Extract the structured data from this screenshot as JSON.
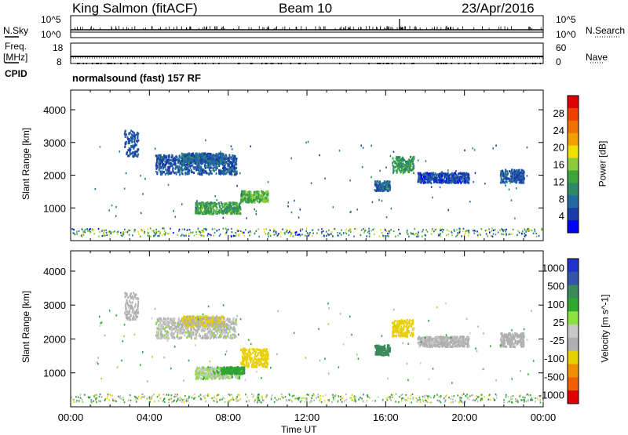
{
  "header": {
    "site": "King Salmon (fitACF)",
    "beam": "Beam 10",
    "date": "23/Apr/2016"
  },
  "summary_panel": {
    "left_labels": {
      "nsky": "N.Sky",
      "freq": "Freq.",
      "freq_unit": "[MHz]",
      "cpid": "CPID"
    },
    "right_labels": {
      "nsearch": "N.Search",
      "nave": "Nave"
    },
    "nsky_ticks": [
      "10^5",
      "10^0"
    ],
    "nsearch_ticks": [
      "10^5",
      "10^0"
    ],
    "freq_ticks": [
      "18",
      "8"
    ],
    "nave_ticks": [
      "60",
      "0"
    ],
    "cpid_text": "normalsound (fast) 157 RF"
  },
  "colors": {
    "power_scale": [
      "#0000ff",
      "#1a3ca8",
      "#236aa0",
      "#2e8a66",
      "#3ca53c",
      "#8ccc3c",
      "#f0e000",
      "#f0a000",
      "#f07000",
      "#f04000",
      "#e00000"
    ],
    "velocity_scale": [
      "#2233cc",
      "#3355aa",
      "#3a8a5a",
      "#2ea82e",
      "#8ce040",
      "#c8c8c8",
      "#b0b0b0",
      "#e8d000",
      "#f09000",
      "#f06000",
      "#e00000"
    ]
  },
  "chart_data": [
    {
      "type": "heatmap",
      "name": "Power",
      "ylabel": "Slant Range [km]",
      "xlabel": "",
      "ylim": [
        0,
        4600
      ],
      "xlim": [
        0,
        24
      ],
      "y_ticks": [
        "1000",
        "2000",
        "3000",
        "4000"
      ],
      "colorbar": {
        "label": "Power [dB]",
        "ticks": [
          "4",
          "8",
          "12",
          "16",
          "20",
          "24",
          "28"
        ],
        "range": [
          0,
          32
        ]
      },
      "regions": [
        {
          "t0": 4.3,
          "t1": 8.4,
          "r0": 2050,
          "r1": 2650,
          "value": 6
        },
        {
          "t0": 5.6,
          "t1": 7.8,
          "r0": 2400,
          "r1": 2700,
          "value": 7
        },
        {
          "t0": 2.7,
          "t1": 3.4,
          "r0": 2600,
          "r1": 3400,
          "value": 6
        },
        {
          "t0": 6.3,
          "t1": 8.6,
          "r0": 850,
          "r1": 1200,
          "value": 12
        },
        {
          "t0": 8.6,
          "t1": 10.0,
          "r0": 1200,
          "r1": 1550,
          "value": 14
        },
        {
          "t0": 15.4,
          "t1": 16.2,
          "r0": 1550,
          "r1": 1850,
          "value": 7
        },
        {
          "t0": 16.3,
          "t1": 17.4,
          "r0": 2100,
          "r1": 2600,
          "value": 11
        },
        {
          "t0": 17.6,
          "t1": 20.2,
          "r0": 1800,
          "r1": 2100,
          "value": 5
        },
        {
          "t0": 21.8,
          "t1": 23.0,
          "r0": 1800,
          "r1": 2200,
          "value": 6
        }
      ],
      "noise_band": {
        "r0": 150,
        "r1": 400
      }
    },
    {
      "type": "heatmap",
      "name": "Velocity",
      "ylabel": "Slant Range [km]",
      "xlabel": "Time UT",
      "ylim": [
        0,
        4600
      ],
      "xlim": [
        0,
        24
      ],
      "y_ticks": [
        "1000",
        "2000",
        "3000",
        "4000"
      ],
      "x_ticks": [
        "00:00",
        "04:00",
        "08:00",
        "12:00",
        "16:00",
        "20:00",
        "00:00"
      ],
      "colorbar": {
        "label": "Velocity [m s^-1]",
        "ticks": [
          "1000",
          "500",
          "100",
          "25",
          "-25",
          "-100",
          "-500",
          "-1000"
        ]
      },
      "regions": [
        {
          "t0": 4.3,
          "t1": 8.4,
          "r0": 2050,
          "r1": 2650,
          "value": -25
        },
        {
          "t0": 5.6,
          "t1": 7.8,
          "r0": 2400,
          "r1": 2700,
          "value": -100
        },
        {
          "t0": 2.7,
          "t1": 3.4,
          "r0": 2600,
          "r1": 3400,
          "value": -50
        },
        {
          "t0": 6.3,
          "t1": 8.6,
          "r0": 850,
          "r1": 1200,
          "value": 0
        },
        {
          "t0": 7.6,
          "t1": 8.8,
          "r0": 1000,
          "r1": 1200,
          "value": 80
        },
        {
          "t0": 8.6,
          "t1": 10.0,
          "r0": 1200,
          "r1": 1750,
          "value": -200
        },
        {
          "t0": 15.4,
          "t1": 16.2,
          "r0": 1550,
          "r1": 1850,
          "value": 400
        },
        {
          "t0": 16.3,
          "t1": 17.4,
          "r0": 2100,
          "r1": 2600,
          "value": -150
        },
        {
          "t0": 17.6,
          "t1": 20.2,
          "r0": 1800,
          "r1": 2100,
          "value": -40
        },
        {
          "t0": 21.8,
          "t1": 23.0,
          "r0": 1800,
          "r1": 2200,
          "value": -60
        }
      ],
      "noise_band": {
        "r0": 150,
        "r1": 400
      }
    }
  ]
}
